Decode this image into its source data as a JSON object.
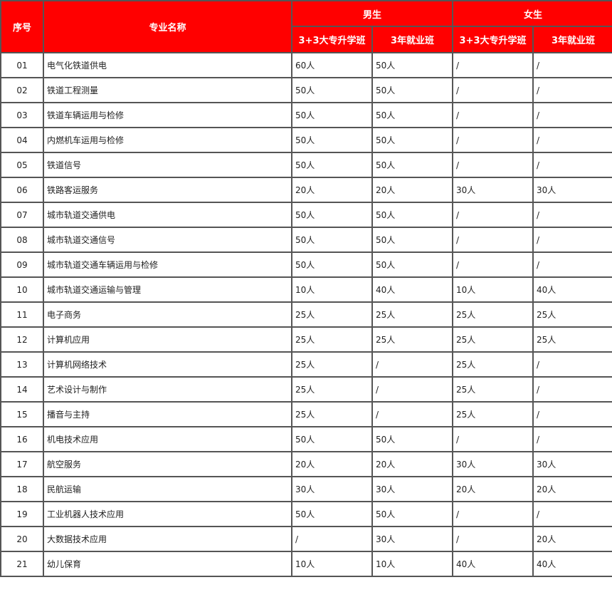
{
  "header": {
    "index": "序号",
    "major": "专业名称",
    "male": "男生",
    "female": "女生",
    "sub": [
      "3+3大专升学班",
      "3年就业班",
      "3+3大专升学班",
      "3年就业班"
    ]
  },
  "colors": {
    "header_bg": "#ff0000",
    "header_text": "#ffffff",
    "border": "#555555"
  },
  "rows": [
    [
      "01",
      "电气化铁道供电",
      "60人",
      "50人",
      "/",
      "/"
    ],
    [
      "02",
      "铁道工程测量",
      "50人",
      "50人",
      "/",
      "/"
    ],
    [
      "03",
      "铁道车辆运用与检修",
      "50人",
      "50人",
      "/",
      "/"
    ],
    [
      "04",
      "内燃机车运用与检修",
      "50人",
      "50人",
      "/",
      "/"
    ],
    [
      "05",
      "铁道信号",
      "50人",
      "50人",
      "/",
      "/"
    ],
    [
      "06",
      "铁路客运服务",
      "20人",
      "20人",
      "30人",
      "30人"
    ],
    [
      "07",
      "城市轨道交通供电",
      "50人",
      "50人",
      "/",
      "/"
    ],
    [
      "08",
      "城市轨道交通信号",
      "50人",
      "50人",
      "/",
      "/"
    ],
    [
      "09",
      "城市轨道交通车辆运用与检修",
      "50人",
      "50人",
      "/",
      "/"
    ],
    [
      "10",
      "城市轨道交通运输与管理",
      "10人",
      "40人",
      "10人",
      "40人"
    ],
    [
      "11",
      "电子商务",
      "25人",
      "25人",
      "25人",
      "25人"
    ],
    [
      "12",
      "计算机应用",
      "25人",
      "25人",
      "25人",
      "25人"
    ],
    [
      "13",
      "计算机网络技术",
      "25人",
      "/",
      "25人",
      "/"
    ],
    [
      "14",
      "艺术设计与制作",
      "25人",
      "/",
      "25人",
      "/"
    ],
    [
      "15",
      "播音与主持",
      "25人",
      "/",
      "25人",
      "/"
    ],
    [
      "16",
      "机电技术应用",
      "50人",
      "50人",
      "/",
      "/"
    ],
    [
      "17",
      "航空服务",
      "20人",
      "20人",
      "30人",
      "30人"
    ],
    [
      "18",
      "民航运输",
      "30人",
      "30人",
      "20人",
      "20人"
    ],
    [
      "19",
      "工业机器人技术应用",
      "50人",
      "50人",
      "/",
      "/"
    ],
    [
      "20",
      "大数据技术应用",
      "/",
      "30人",
      "/",
      "20人"
    ],
    [
      "21",
      "幼儿保育",
      "10人",
      "10人",
      "40人",
      "40人"
    ]
  ]
}
